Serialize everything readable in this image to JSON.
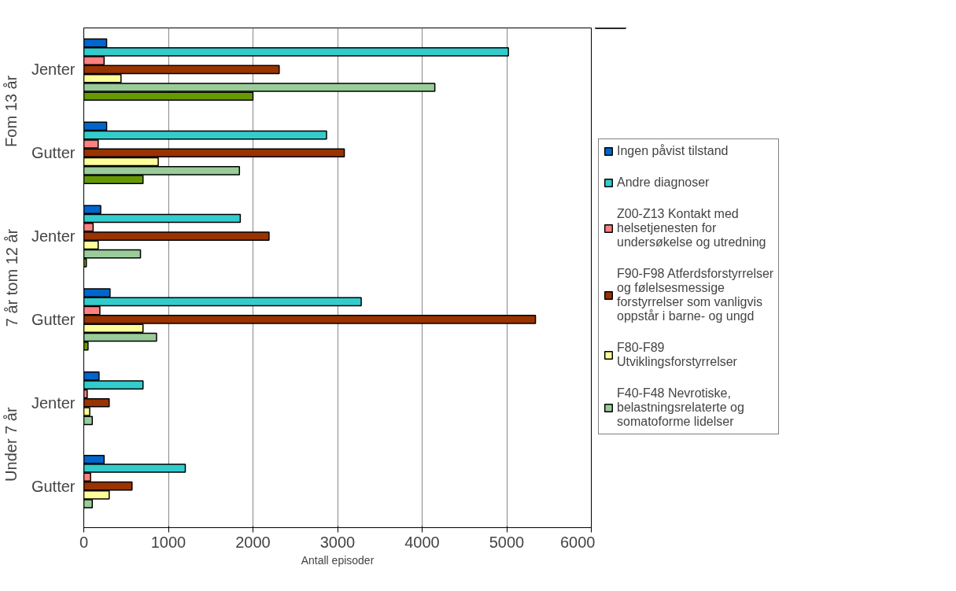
{
  "chart_data": {
    "type": "bar",
    "orientation": "horizontal",
    "categories": [
      "Jenter",
      "Gutter",
      "Jenter",
      "Gutter",
      "Jenter",
      "Gutter"
    ],
    "annotations": [
      "Fom 13 år",
      "7 år tom 12 år",
      "Under 7 år"
    ],
    "xlabel": "Antall episoder",
    "series": [
      {
        "name": "Ingen påvist tilstand",
        "color": "#0066cc",
        "values": [
          270,
          270,
          200,
          310,
          180,
          240
        ]
      },
      {
        "name": "Andre diagnoser",
        "color": "#33cccc",
        "values": [
          5020,
          2870,
          1850,
          3280,
          700,
          1200
        ]
      },
      {
        "name": "Z00-Z13 Kontakt med helsetjenesten for undersøkelse og utredning",
        "color": "#ff8080",
        "values": [
          240,
          170,
          110,
          190,
          40,
          80
        ]
      },
      {
        "name": "F90-F98 Atferdsforstyrrelser og følelsesmessige forstyrrelser som vanligvis oppstår i barne- og ungd",
        "color": "#993300",
        "values": [
          2310,
          3080,
          2190,
          5340,
          300,
          570
        ]
      },
      {
        "name": "F80-F89 Utviklingsforstyrrelser",
        "color": "#ffff99",
        "values": [
          440,
          880,
          170,
          700,
          70,
          300
        ]
      },
      {
        "name": "F40-F48 Nevrotiske, belastningsrelaterte og somatoforme lidelser",
        "color": "#99cc99",
        "values": [
          4150,
          1840,
          670,
          860,
          100,
          100
        ]
      },
      {
        "color": "#669900",
        "values": [
          2000,
          700,
          30,
          50,
          null,
          null
        ]
      }
    ],
    "xlim": [
      0,
      6000
    ],
    "xticks": [
      0,
      1000,
      2000,
      3000,
      4000,
      5000,
      6000
    ],
    "grid": "x",
    "legend": "right"
  }
}
